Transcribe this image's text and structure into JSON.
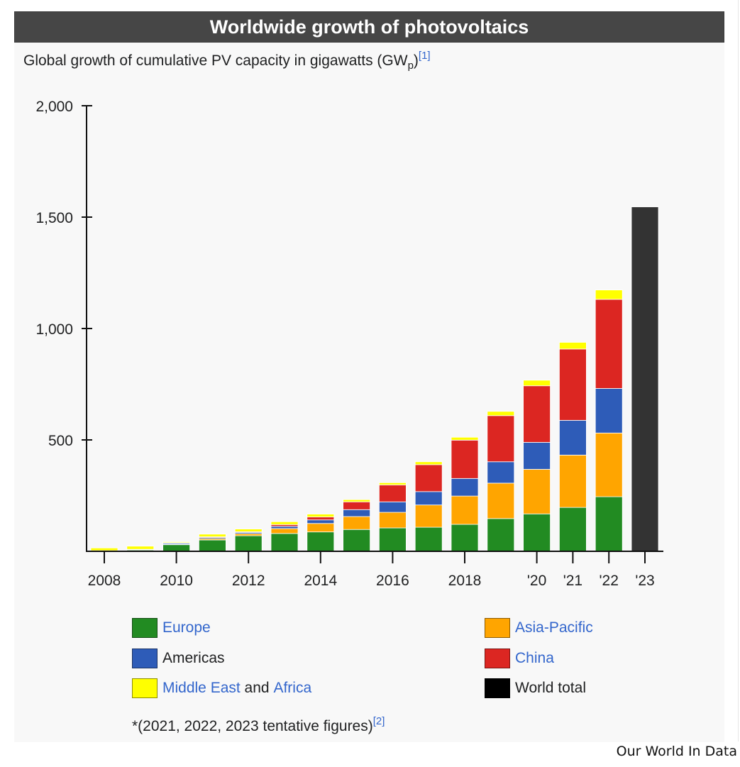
{
  "header": {
    "title": "Worldwide growth of photovoltaics"
  },
  "subtitle": {
    "text": "Global growth of cumulative PV capacity in gigawatts (GW",
    "sub": "p",
    "close": ")",
    "ref": "[1]"
  },
  "legend": {
    "items": [
      {
        "key": "europe",
        "label": "Europe",
        "color": "#228b22",
        "link": true
      },
      {
        "key": "asia_pacific",
        "label": "Asia-Pacific",
        "color": "#ffa500",
        "link": true
      },
      {
        "key": "americas",
        "label": "Americas",
        "color": "#2e5cb8",
        "link": false
      },
      {
        "key": "china",
        "label": "China",
        "color": "#dc2622",
        "link": true
      },
      {
        "key": "mea",
        "label_part1": "Middle East",
        "label_part2": " and ",
        "label_part3": "Africa",
        "color": "#ffff00"
      },
      {
        "key": "world",
        "label": "World total",
        "color": "#000000",
        "link": false
      }
    ]
  },
  "footnote": {
    "text": "*(2021, 2022, 2023 tentative figures)",
    "ref": "[2]"
  },
  "credit": "Our World In Data",
  "chart_data": {
    "type": "bar",
    "stacked": true,
    "title": "Worldwide growth of photovoltaics",
    "subtitle": "Global growth of cumulative PV capacity in gigawatts (GWp)",
    "xlabel": "",
    "ylabel": "",
    "ylim": [
      0,
      2000
    ],
    "yticks": [
      500,
      1000,
      1500,
      2000
    ],
    "ytick_labels": [
      "500",
      "1,000",
      "1,500",
      "2,000"
    ],
    "categories": [
      "2008",
      "2009",
      "2010",
      "2011",
      "2012",
      "2013",
      "2014",
      "2015",
      "2016",
      "2017",
      "2018",
      "2019",
      "2020",
      "2021",
      "2022",
      "2023"
    ],
    "xtick_labels": [
      {
        "category": "2008",
        "label": "2008"
      },
      {
        "category": "2010",
        "label": "2010"
      },
      {
        "category": "2012",
        "label": "2012"
      },
      {
        "category": "2014",
        "label": "2014"
      },
      {
        "category": "2016",
        "label": "2016"
      },
      {
        "category": "2018",
        "label": "2018"
      },
      {
        "category": "2020",
        "label": "'20"
      },
      {
        "category": "2021",
        "label": "'21"
      },
      {
        "category": "2022",
        "label": "'22"
      },
      {
        "category": "2023",
        "label": "'23"
      }
    ],
    "series": [
      {
        "name": "Europe",
        "color": "#228b22",
        "values": [
          3,
          7,
          30,
          51,
          70,
          80,
          87,
          98,
          105,
          108,
          121,
          147,
          168,
          197,
          245,
          null
        ]
      },
      {
        "name": "Asia-Pacific",
        "color": "#ffa500",
        "values": [
          0,
          1,
          2,
          6,
          9,
          22,
          38,
          58,
          70,
          100,
          127,
          159,
          200,
          235,
          286,
          null
        ]
      },
      {
        "name": "Americas",
        "color": "#2e5cb8",
        "values": [
          0,
          1,
          6,
          5,
          6,
          10,
          16,
          31,
          47,
          60,
          79,
          96,
          121,
          156,
          200,
          null
        ]
      },
      {
        "name": "China",
        "color": "#dc2622",
        "values": [
          0,
          0,
          1,
          3,
          3,
          8,
          13,
          35,
          76,
          121,
          172,
          207,
          254,
          320,
          400,
          null
        ]
      },
      {
        "name": "Middle East and Africa",
        "color": "#ffff00",
        "values": [
          12,
          14,
          4,
          12,
          12,
          13,
          13,
          10,
          10,
          13,
          13,
          19,
          25,
          30,
          42,
          null
        ]
      },
      {
        "name": "World total",
        "color": "#333333",
        "values": [
          null,
          null,
          null,
          null,
          null,
          null,
          null,
          null,
          null,
          null,
          null,
          null,
          null,
          null,
          null,
          1546
        ]
      }
    ],
    "legend_position": "bottom",
    "grid": false
  }
}
